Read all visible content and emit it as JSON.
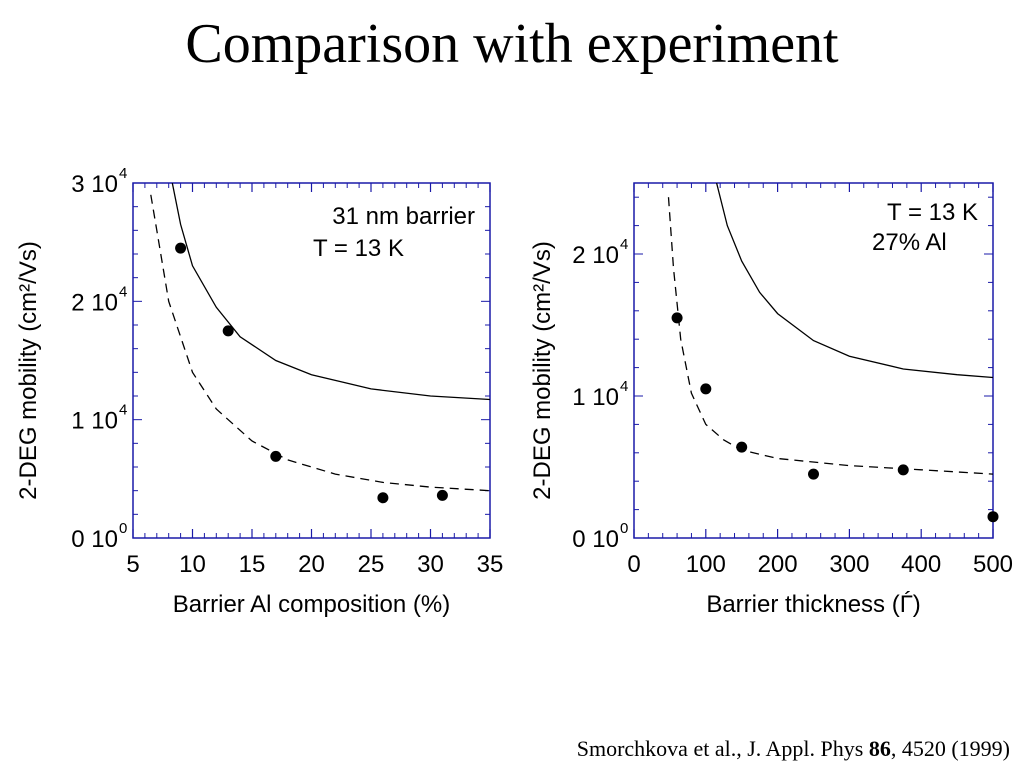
{
  "page": {
    "title": "Comparison with experiment",
    "citation": {
      "prefix": "Smorchkova et al., J. Appl. Phys ",
      "volume": "86",
      "suffix": ", 4520 (1999)"
    }
  },
  "colors": {
    "axis": "#1a1aa8",
    "ink": "#000000"
  },
  "chart_data": [
    {
      "type": "scatter",
      "xlabel": "Barrier Al composition (%)",
      "ylabel": "2-DEG mobility (cm²/Vs)",
      "xlim": [
        5,
        35
      ],
      "ylim": [
        0,
        30000
      ],
      "x_ticks": [
        5,
        10,
        15,
        20,
        25,
        30,
        35
      ],
      "y_ticks": [
        {
          "value": 0,
          "mantissa": "0 10",
          "exp": "0"
        },
        {
          "value": 10000,
          "mantissa": "1 10",
          "exp": "4"
        },
        {
          "value": 20000,
          "mantissa": "2 10",
          "exp": "4"
        },
        {
          "value": 30000,
          "mantissa": "3 10",
          "exp": "4"
        }
      ],
      "annotations": [
        "31 nm barrier",
        "T = 13 K"
      ],
      "series": [
        {
          "style": "points",
          "points": [
            [
              9,
              24500
            ],
            [
              13,
              17500
            ],
            [
              17,
              6900
            ],
            [
              26,
              3400
            ],
            [
              31,
              3600
            ]
          ]
        },
        {
          "style": "solid",
          "points": [
            [
              8.3,
              30000
            ],
            [
              9,
              26500
            ],
            [
              10,
              23000
            ],
            [
              12,
              19500
            ],
            [
              14,
              17000
            ],
            [
              17,
              15000
            ],
            [
              20,
              13800
            ],
            [
              25,
              12600
            ],
            [
              30,
              12000
            ],
            [
              35,
              11700
            ]
          ]
        },
        {
          "style": "dashed",
          "points": [
            [
              6.5,
              29000
            ],
            [
              7,
              26000
            ],
            [
              8,
              20000
            ],
            [
              10,
              14000
            ],
            [
              12,
              10900
            ],
            [
              15,
              8200
            ],
            [
              18,
              6600
            ],
            [
              22,
              5400
            ],
            [
              26,
              4700
            ],
            [
              30,
              4300
            ],
            [
              35,
              4000
            ]
          ]
        }
      ]
    },
    {
      "type": "scatter",
      "xlabel": "Barrier thickness (Ѓ)",
      "ylabel": "2-DEG mobility (cm²/Vs)",
      "xlim": [
        0,
        500
      ],
      "ylim": [
        0,
        25000
      ],
      "x_ticks": [
        0,
        100,
        200,
        300,
        400,
        500
      ],
      "y_ticks": [
        {
          "value": 0,
          "mantissa": "0 10",
          "exp": "0"
        },
        {
          "value": 10000,
          "mantissa": "1 10",
          "exp": "4"
        },
        {
          "value": 20000,
          "mantissa": "2 10",
          "exp": "4"
        }
      ],
      "annotations": [
        "T = 13 K",
        "27% Al"
      ],
      "series": [
        {
          "style": "points",
          "points": [
            [
              60,
              15500
            ],
            [
              100,
              10500
            ],
            [
              150,
              6400
            ],
            [
              250,
              4500
            ],
            [
              375,
              4800
            ],
            [
              500,
              1500
            ]
          ]
        },
        {
          "style": "solid",
          "points": [
            [
              115,
              25000
            ],
            [
              130,
              22000
            ],
            [
              150,
              19500
            ],
            [
              175,
              17300
            ],
            [
              200,
              15800
            ],
            [
              250,
              13900
            ],
            [
              300,
              12800
            ],
            [
              375,
              11900
            ],
            [
              450,
              11500
            ],
            [
              500,
              11300
            ]
          ]
        },
        {
          "style": "dashed",
          "points": [
            [
              48,
              24000
            ],
            [
              55,
              19000
            ],
            [
              65,
              14000
            ],
            [
              80,
              10200
            ],
            [
              100,
              8000
            ],
            [
              125,
              6900
            ],
            [
              150,
              6200
            ],
            [
              200,
              5600
            ],
            [
              300,
              5100
            ],
            [
              400,
              4800
            ],
            [
              500,
              4500
            ]
          ]
        }
      ]
    }
  ]
}
